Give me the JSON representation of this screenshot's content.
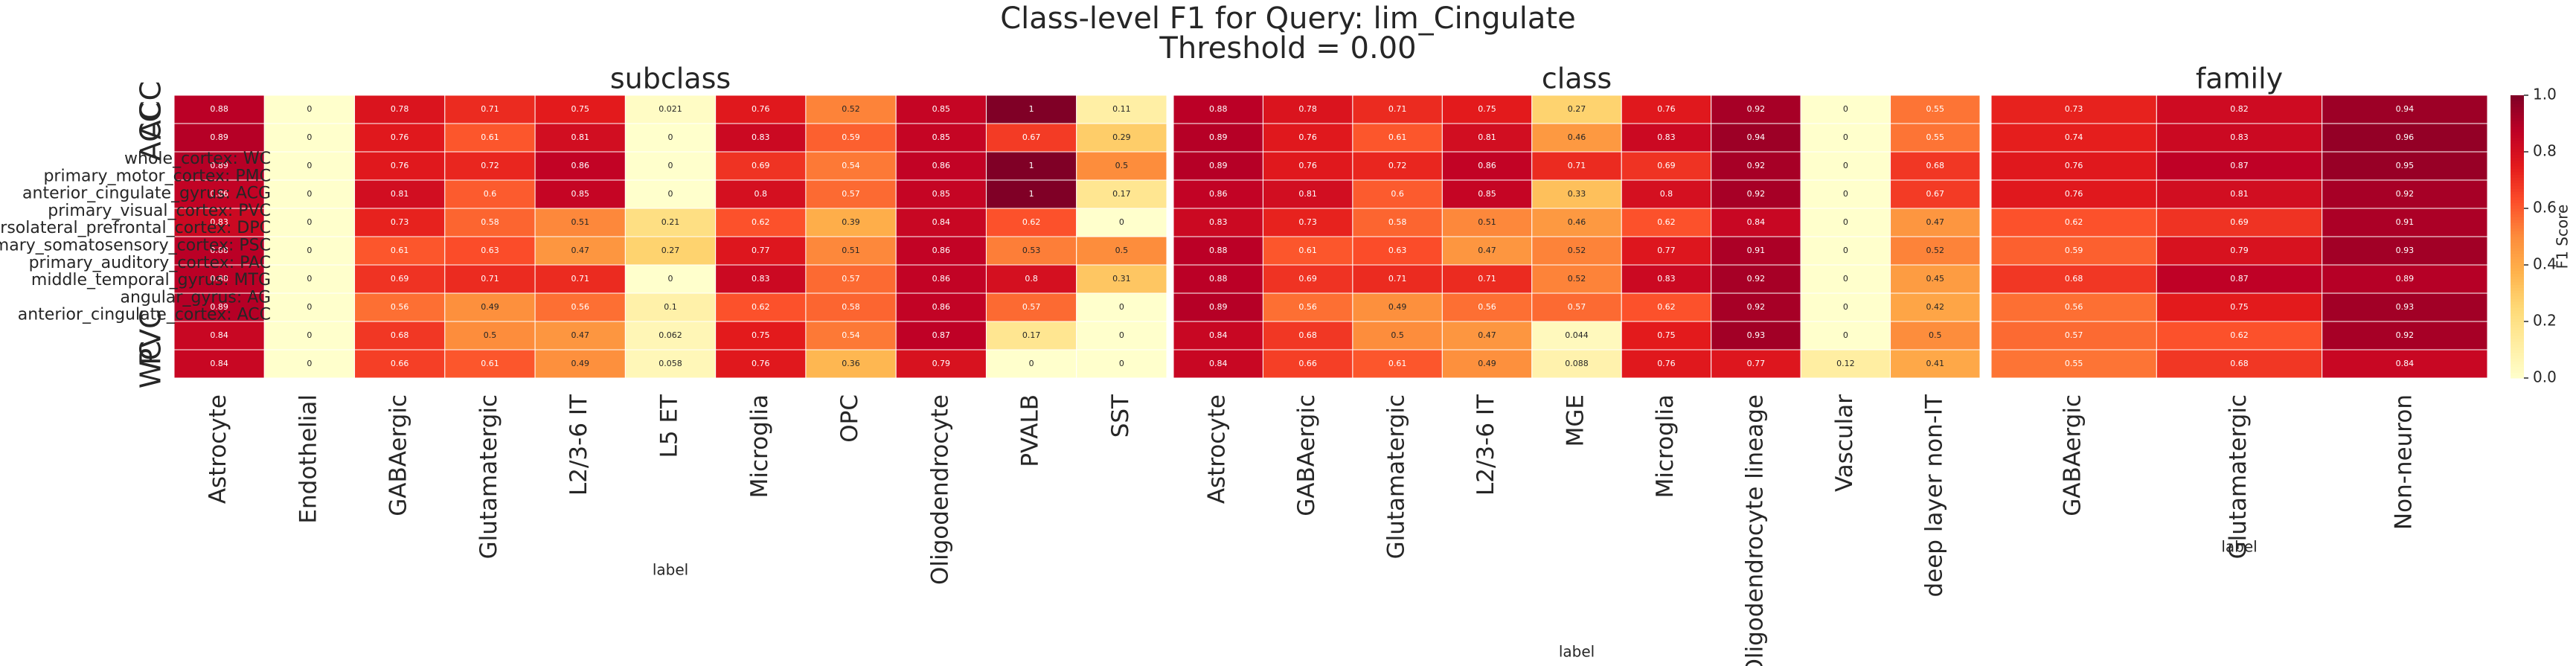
{
  "figure": {
    "title": "Class-level F1 for Query: lim_Cingulate",
    "subtitle": "Threshold = 0.00"
  },
  "row_labels": [
    "ACC",
    "ACC",
    "PVC",
    "WC"
  ],
  "region_labels": [
    "whole_cortex: WC",
    "primary_motor_cortex: PMC",
    "anterior_cingulate_gyrus: ACG",
    "primary_visual_cortex: PVC",
    "dorsolateral_prefrontal_cortex: DPC",
    "primary_somatosensory_cortex: PSC",
    "primary_auditory_cortex: PAC",
    "middle_temporal_gyrus: MTG",
    "angular_gyrus: AG",
    "anterior_cingulate_cortex: ACC"
  ],
  "colorbar": {
    "label": "F1 Score",
    "zlim": [
      0,
      1
    ],
    "ticks": [
      {
        "value": 0,
        "label": "0.0"
      },
      {
        "value": 0.2,
        "label": "0.2"
      },
      {
        "value": 0.4,
        "label": "0.4"
      },
      {
        "value": 0.6,
        "label": "0.6"
      },
      {
        "value": 0.8,
        "label": "0.8"
      },
      {
        "value": 1,
        "label": "1.0"
      }
    ],
    "colormap": [
      "#ffffcc",
      "#ffeda0",
      "#fed976",
      "#feb24c",
      "#fd8d3c",
      "#fc4e2a",
      "#e31a1c",
      "#bd0026",
      "#800026"
    ]
  },
  "chart_data": [
    {
      "type": "heatmap",
      "title": "subclass",
      "xlabel": "label",
      "categories": [
        "Astrocyte",
        "Endothelial",
        "GABAergic",
        "Glutamatergic",
        "L2/3-6 IT",
        "L5 ET",
        "Microglia",
        "OPC",
        "Oligodendrocyte",
        "PVALB",
        "SST"
      ],
      "values": [
        [
          0.88,
          0,
          0.78,
          0.71,
          0.75,
          0.021,
          0.76,
          0.52,
          0.85,
          1,
          0.11
        ],
        [
          0.89,
          0,
          0.76,
          0.61,
          0.81,
          0,
          0.83,
          0.59,
          0.85,
          0.67,
          0.29
        ],
        [
          0.89,
          0,
          0.76,
          0.72,
          0.86,
          0,
          0.69,
          0.54,
          0.86,
          1,
          0.5
        ],
        [
          0.86,
          0,
          0.81,
          0.6,
          0.85,
          0,
          0.8,
          0.57,
          0.85,
          1,
          0.17
        ],
        [
          0.83,
          0,
          0.73,
          0.58,
          0.51,
          0.21,
          0.62,
          0.39,
          0.84,
          0.62,
          0
        ],
        [
          0.88,
          0,
          0.61,
          0.63,
          0.47,
          0.27,
          0.77,
          0.51,
          0.86,
          0.53,
          0.5
        ],
        [
          0.88,
          0,
          0.69,
          0.71,
          0.71,
          0,
          0.83,
          0.57,
          0.86,
          0.8,
          0.31
        ],
        [
          0.89,
          0,
          0.56,
          0.49,
          0.56,
          0.1,
          0.62,
          0.58,
          0.86,
          0.57,
          0
        ],
        [
          0.84,
          0,
          0.68,
          0.5,
          0.47,
          0.062,
          0.75,
          0.54,
          0.87,
          0.17,
          0
        ],
        [
          0.84,
          0,
          0.66,
          0.61,
          0.49,
          0.058,
          0.76,
          0.36,
          0.79,
          0,
          0
        ]
      ]
    },
    {
      "type": "heatmap",
      "title": "class",
      "xlabel": "label",
      "categories": [
        "Astrocyte",
        "GABAergic",
        "Glutamatergic",
        "L2/3-6 IT",
        "MGE",
        "Microglia",
        "Oligodendrocyte lineage",
        "Vascular",
        "deep layer non-IT"
      ],
      "values": [
        [
          0.88,
          0.78,
          0.71,
          0.75,
          0.27,
          0.76,
          0.92,
          0,
          0.55
        ],
        [
          0.89,
          0.76,
          0.61,
          0.81,
          0.46,
          0.83,
          0.94,
          0,
          0.55
        ],
        [
          0.89,
          0.76,
          0.72,
          0.86,
          0.71,
          0.69,
          0.92,
          0,
          0.68
        ],
        [
          0.86,
          0.81,
          0.6,
          0.85,
          0.33,
          0.8,
          0.92,
          0,
          0.67
        ],
        [
          0.83,
          0.73,
          0.58,
          0.51,
          0.46,
          0.62,
          0.84,
          0,
          0.47
        ],
        [
          0.88,
          0.61,
          0.63,
          0.47,
          0.52,
          0.77,
          0.91,
          0,
          0.52
        ],
        [
          0.88,
          0.69,
          0.71,
          0.71,
          0.52,
          0.83,
          0.92,
          0,
          0.45
        ],
        [
          0.89,
          0.56,
          0.49,
          0.56,
          0.57,
          0.62,
          0.92,
          0,
          0.42
        ],
        [
          0.84,
          0.68,
          0.5,
          0.47,
          0.044,
          0.75,
          0.93,
          0,
          0.5
        ],
        [
          0.84,
          0.66,
          0.61,
          0.49,
          0.088,
          0.76,
          0.77,
          0.12,
          0.41
        ]
      ]
    },
    {
      "type": "heatmap",
      "title": "family",
      "xlabel": "label",
      "categories": [
        "GABAergic",
        "Glutamatergic",
        "Non-neuron"
      ],
      "values": [
        [
          0.73,
          0.82,
          0.94
        ],
        [
          0.74,
          0.83,
          0.96
        ],
        [
          0.76,
          0.87,
          0.95
        ],
        [
          0.76,
          0.81,
          0.92
        ],
        [
          0.62,
          0.69,
          0.91
        ],
        [
          0.59,
          0.79,
          0.93
        ],
        [
          0.68,
          0.87,
          0.89
        ],
        [
          0.56,
          0.75,
          0.93
        ],
        [
          0.57,
          0.62,
          0.92
        ],
        [
          0.55,
          0.68,
          0.84
        ]
      ]
    }
  ]
}
